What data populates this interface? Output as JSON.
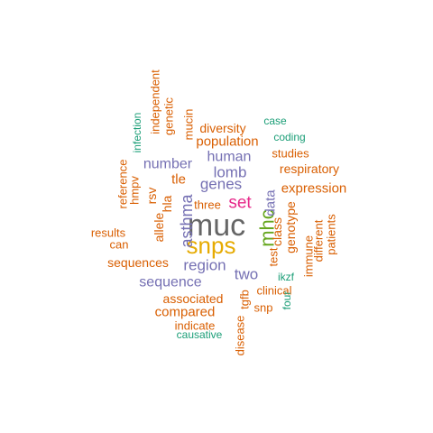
{
  "words": [
    {
      "text": "muc",
      "color": "#666666"
    },
    {
      "text": "snps",
      "color": "#E6AB02"
    },
    {
      "text": "mhc",
      "color": "#66A61E"
    },
    {
      "text": "set",
      "color": "#E7298A"
    },
    {
      "text": "asthma",
      "color": "#7570B3"
    },
    {
      "text": "lomb",
      "color": "#7570B3"
    },
    {
      "text": "genes",
      "color": "#7570B3"
    },
    {
      "text": "human",
      "color": "#7570B3"
    },
    {
      "text": "number",
      "color": "#7570B3"
    },
    {
      "text": "region",
      "color": "#7570B3"
    },
    {
      "text": "two",
      "color": "#7570B3"
    },
    {
      "text": "sequence",
      "color": "#7570B3"
    },
    {
      "text": "data",
      "color": "#7570B3"
    },
    {
      "text": "population",
      "color": "#D95F02"
    },
    {
      "text": "diversity",
      "color": "#D95F02"
    },
    {
      "text": "respiratory",
      "color": "#D95F02"
    },
    {
      "text": "expression",
      "color": "#D95F02"
    },
    {
      "text": "studies",
      "color": "#D95F02"
    },
    {
      "text": "sequences",
      "color": "#D95F02"
    },
    {
      "text": "associated",
      "color": "#D95F02"
    },
    {
      "text": "compared",
      "color": "#D95F02"
    },
    {
      "text": "indicate",
      "color": "#D95F02"
    },
    {
      "text": "tle",
      "color": "#D95F02"
    },
    {
      "text": "hla",
      "color": "#D95F02"
    },
    {
      "text": "rsv",
      "color": "#D95F02"
    },
    {
      "text": "allele",
      "color": "#D95F02"
    },
    {
      "text": "three",
      "color": "#D95F02"
    },
    {
      "text": "class",
      "color": "#D95F02"
    },
    {
      "text": "genotype",
      "color": "#D95F02"
    },
    {
      "text": "test",
      "color": "#D95F02"
    },
    {
      "text": "clinical",
      "color": "#D95F02"
    },
    {
      "text": "snp",
      "color": "#D95F02"
    },
    {
      "text": "tgfb",
      "color": "#D95F02"
    },
    {
      "text": "disease",
      "color": "#D95F02"
    },
    {
      "text": "immune",
      "color": "#D95F02"
    },
    {
      "text": "different",
      "color": "#D95F02"
    },
    {
      "text": "patients",
      "color": "#D95F02"
    },
    {
      "text": "results",
      "color": "#D95F02"
    },
    {
      "text": "can",
      "color": "#D95F02"
    },
    {
      "text": "hmpv",
      "color": "#D95F02"
    },
    {
      "text": "reference",
      "color": "#D95F02"
    },
    {
      "text": "genetic",
      "color": "#D95F02"
    },
    {
      "text": "independent",
      "color": "#D95F02"
    },
    {
      "text": "mucin",
      "color": "#D95F02"
    },
    {
      "text": "infection",
      "color": "#1B9E77"
    },
    {
      "text": "case",
      "color": "#1B9E77"
    },
    {
      "text": "coding",
      "color": "#1B9E77"
    },
    {
      "text": "ikzf",
      "color": "#1B9E77"
    },
    {
      "text": "four",
      "color": "#1B9E77"
    },
    {
      "text": "causative",
      "color": "#1B9E77"
    }
  ]
}
